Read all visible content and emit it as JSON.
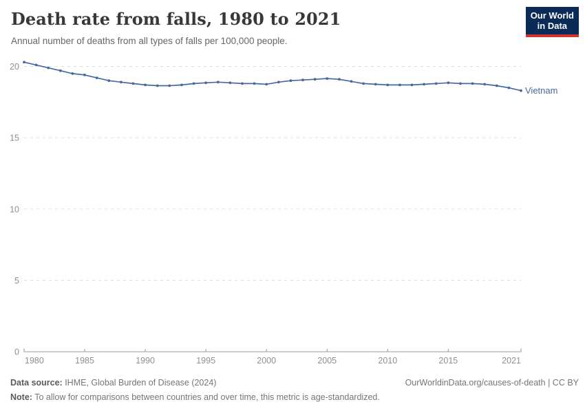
{
  "header": {
    "title": "Death rate from falls, 1980 to 2021",
    "subtitle": "Annual number of deaths from all types of falls per 100,000 people.",
    "logo": {
      "line1": "Our World",
      "line2": "in Data",
      "bg_color": "#0b2b57",
      "accent_color": "#d0342f"
    }
  },
  "chart_data": {
    "type": "line",
    "title": "Death rate from falls, 1980 to 2021",
    "ylabel": "",
    "xlabel": "",
    "xlim": [
      1980,
      2021
    ],
    "ylim": [
      0,
      20
    ],
    "x_ticks": [
      1980,
      1985,
      1990,
      1995,
      2000,
      2005,
      2010,
      2015,
      2021
    ],
    "y_ticks": [
      0,
      5,
      10,
      15,
      20
    ],
    "grid": "horizontal-dashed",
    "legend_position": "end-of-line-label",
    "series": [
      {
        "name": "Vietnam",
        "color": "#4668a2",
        "x": [
          1980,
          1981,
          1982,
          1983,
          1984,
          1985,
          1986,
          1987,
          1988,
          1989,
          1990,
          1991,
          1992,
          1993,
          1994,
          1995,
          1996,
          1997,
          1998,
          1999,
          2000,
          2001,
          2002,
          2003,
          2004,
          2005,
          2006,
          2007,
          2008,
          2009,
          2010,
          2011,
          2012,
          2013,
          2014,
          2015,
          2016,
          2017,
          2018,
          2019,
          2020,
          2021
        ],
        "values": [
          20.3,
          20.1,
          19.9,
          19.7,
          19.5,
          19.4,
          19.2,
          19.0,
          18.9,
          18.8,
          18.7,
          18.65,
          18.65,
          18.7,
          18.8,
          18.85,
          18.9,
          18.85,
          18.8,
          18.8,
          18.75,
          18.9,
          19.0,
          19.05,
          19.1,
          19.15,
          19.1,
          18.95,
          18.8,
          18.75,
          18.7,
          18.7,
          18.7,
          18.75,
          18.8,
          18.85,
          18.8,
          18.8,
          18.75,
          18.65,
          18.5,
          18.3
        ]
      }
    ],
    "style": {
      "grid_color": "#dddddd",
      "axis_color": "#999999",
      "tick_label_color": "#8f8f8f"
    }
  },
  "footer": {
    "data_source_label": "Data source:",
    "data_source_text": " IHME, Global Burden of Disease (2024)",
    "attribution": "OurWorldinData.org/causes-of-death | CC BY",
    "note_label": "Note:",
    "note_text": " To allow for comparisons between countries and over time, this metric is age-standardized."
  }
}
